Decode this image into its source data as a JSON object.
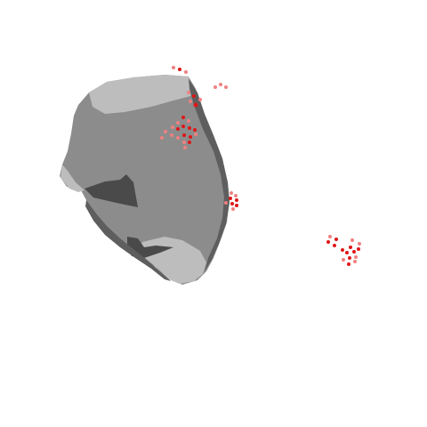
{
  "scene": {
    "background": "#ffffff",
    "colors": {
      "mesh_mid": "#8c8c8c",
      "mesh_light": "#bdbdbd",
      "mesh_dark": "#4a4a4a",
      "mesh_shadow": "#5e5e5e",
      "marker": "#e01616",
      "marker_light": "#f08080"
    },
    "objects": [
      {
        "kind": "mesh",
        "name": "gray-3d-mesh"
      },
      {
        "kind": "point-cluster",
        "name": "red-marker-cluster",
        "count": 5
      }
    ]
  }
}
